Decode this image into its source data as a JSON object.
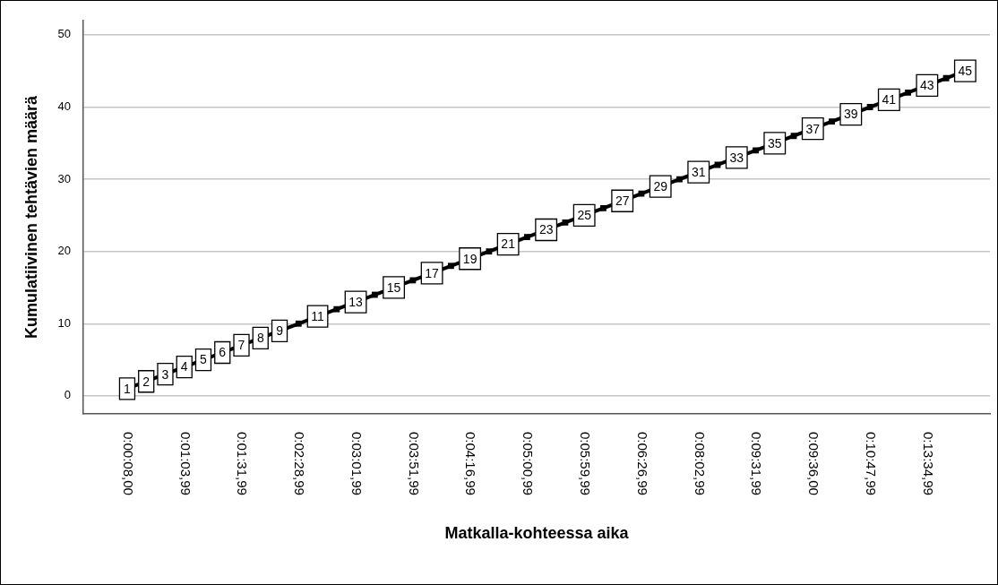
{
  "chart_data": {
    "type": "line",
    "xlabel": "Matkalla-kohteessa aika",
    "ylabel": "Kumulatiivinen tehtävien määrä",
    "categories": [
      "0:00:08,00",
      null,
      null,
      "0:01:03,99",
      null,
      null,
      "0:01:31,99",
      null,
      null,
      "0:02:28,99",
      null,
      null,
      "0:03:01,99",
      null,
      null,
      "0:03:51,99",
      null,
      null,
      "0:04:16,99",
      null,
      null,
      "0:05:00,99",
      null,
      null,
      "0:05:59,99",
      null,
      null,
      "0:06:26,99",
      null,
      null,
      "0:08:02,99",
      null,
      null,
      "0:09:31,99",
      null,
      null,
      "0:09:36,00",
      null,
      null,
      "0:10:47,99",
      null,
      null,
      "0:13:34,99",
      null,
      null
    ],
    "series": [
      {
        "color": "#000000",
        "values": [
          1,
          2,
          3,
          4,
          5,
          6,
          7,
          8,
          9,
          10,
          11,
          12,
          13,
          14,
          15,
          16,
          17,
          18,
          19,
          20,
          21,
          22,
          23,
          24,
          25,
          26,
          27,
          28,
          29,
          30,
          31,
          32,
          33,
          34,
          35,
          36,
          37,
          38,
          39,
          40,
          41,
          42,
          43,
          44,
          45
        ],
        "value_labels": [
          "1",
          "2",
          "3",
          "4",
          "5",
          "6",
          "7",
          "8",
          "9",
          null,
          "11",
          null,
          "13",
          null,
          "15",
          null,
          "17",
          null,
          "19",
          null,
          "21",
          null,
          "23",
          null,
          "25",
          null,
          "27",
          null,
          "29",
          null,
          "31",
          null,
          "33",
          null,
          "35",
          null,
          "37",
          null,
          "39",
          null,
          "41",
          null,
          "43",
          null,
          "45"
        ]
      }
    ],
    "ylim": [
      -2.5,
      52
    ],
    "yticks": [
      0,
      10,
      20,
      30,
      40,
      50
    ],
    "grid": "y",
    "legend": false,
    "marker": "square",
    "line_style": "solid"
  }
}
